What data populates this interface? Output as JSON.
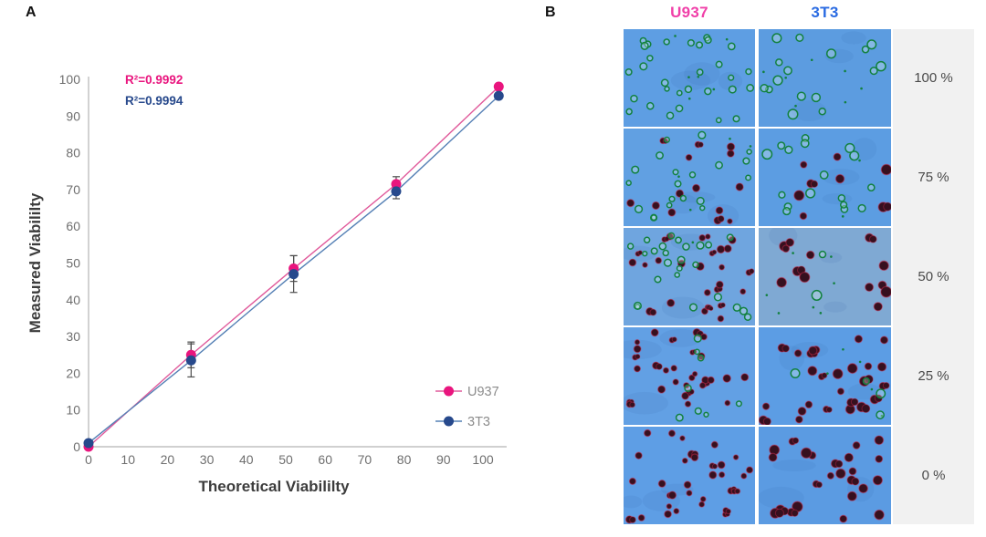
{
  "panelA": {
    "label": "A"
  },
  "chart_data": {
    "type": "line",
    "title": "",
    "xlabel": "Theoretical Viabililty",
    "ylabel": "Measured Viabililty",
    "xlim": [
      0,
      106
    ],
    "ylim": [
      0,
      100
    ],
    "xticks": [
      0,
      10,
      20,
      30,
      40,
      50,
      60,
      70,
      80,
      90,
      100
    ],
    "yticks": [
      0,
      10,
      20,
      30,
      40,
      50,
      60,
      70,
      80,
      90,
      100
    ],
    "x": [
      0,
      26,
      52,
      78,
      104
    ],
    "series": [
      {
        "name": "U937",
        "marker_color": "#E9157E",
        "line_color": "#E05A9B",
        "values": [
          0,
          25,
          48.5,
          71.5,
          98
        ],
        "yerr": [
          0,
          3.5,
          3.5,
          2,
          0
        ],
        "annotation": "R²=0.9992"
      },
      {
        "name": "3T3",
        "marker_color": "#27498C",
        "line_color": "#5580B5",
        "values": [
          1,
          23.5,
          47,
          69.5,
          95.5
        ],
        "yerr": [
          0,
          4.5,
          5,
          2,
          0
        ],
        "annotation": "R²=0.9994"
      }
    ],
    "legend_position": "lower right",
    "grid": false,
    "axis_color": "#B3B3B3",
    "tick_label_color": "#6E6E6E",
    "axis_label_color": "#3C3C3C",
    "errorbar_color": "#4D4D4D",
    "legend_text_color": "#8C8C8C"
  },
  "panelB": {
    "label": "B",
    "columns": [
      {
        "name": "U937",
        "color": "#F03FA8"
      },
      {
        "name": "3T3",
        "color": "#2A6BE2"
      }
    ],
    "rows": [
      {
        "label": "100 %"
      },
      {
        "label": "75 %"
      },
      {
        "label": "50 %"
      },
      {
        "label": "25 %"
      },
      {
        "label": "0 %"
      }
    ],
    "grid": [
      [
        {
          "bg": "#5E9EE3",
          "live": 36,
          "dead": 0,
          "size": 1.0,
          "seed": 11
        },
        {
          "bg": "#5C9CE0",
          "live": 23,
          "dead": 0,
          "size": 1.35,
          "seed": 22
        }
      ],
      [
        {
          "bg": "#61A0E2",
          "live": 24,
          "dead": 15,
          "size": 1.0,
          "seed": 33
        },
        {
          "bg": "#5C9DE2",
          "live": 19,
          "dead": 8,
          "size": 1.35,
          "seed": 44
        }
      ],
      [
        {
          "bg": "#6FA5DF",
          "live": 26,
          "dead": 27,
          "size": 1.0,
          "seed": 55
        },
        {
          "bg": "#7FA9D3",
          "live": 9,
          "dead": 13,
          "size": 1.4,
          "seed": 66
        }
      ],
      [
        {
          "bg": "#62A0E4",
          "live": 8,
          "dead": 30,
          "size": 1.0,
          "seed": 77
        },
        {
          "bg": "#5C9DE4",
          "live": 9,
          "dead": 26,
          "size": 1.3,
          "seed": 88
        }
      ],
      [
        {
          "bg": "#5E9EE5",
          "live": 0,
          "dead": 33,
          "size": 1.0,
          "seed": 99
        },
        {
          "bg": "#5B9BE2",
          "live": 0,
          "dead": 24,
          "size": 1.35,
          "seed": 110
        }
      ]
    ],
    "live_color": "#12813F",
    "dead_color": "#36101F",
    "dead_ring_color": "#C62848",
    "strip_bg": "#F1F1F1",
    "strip_text_color": "#4A4A4A"
  }
}
